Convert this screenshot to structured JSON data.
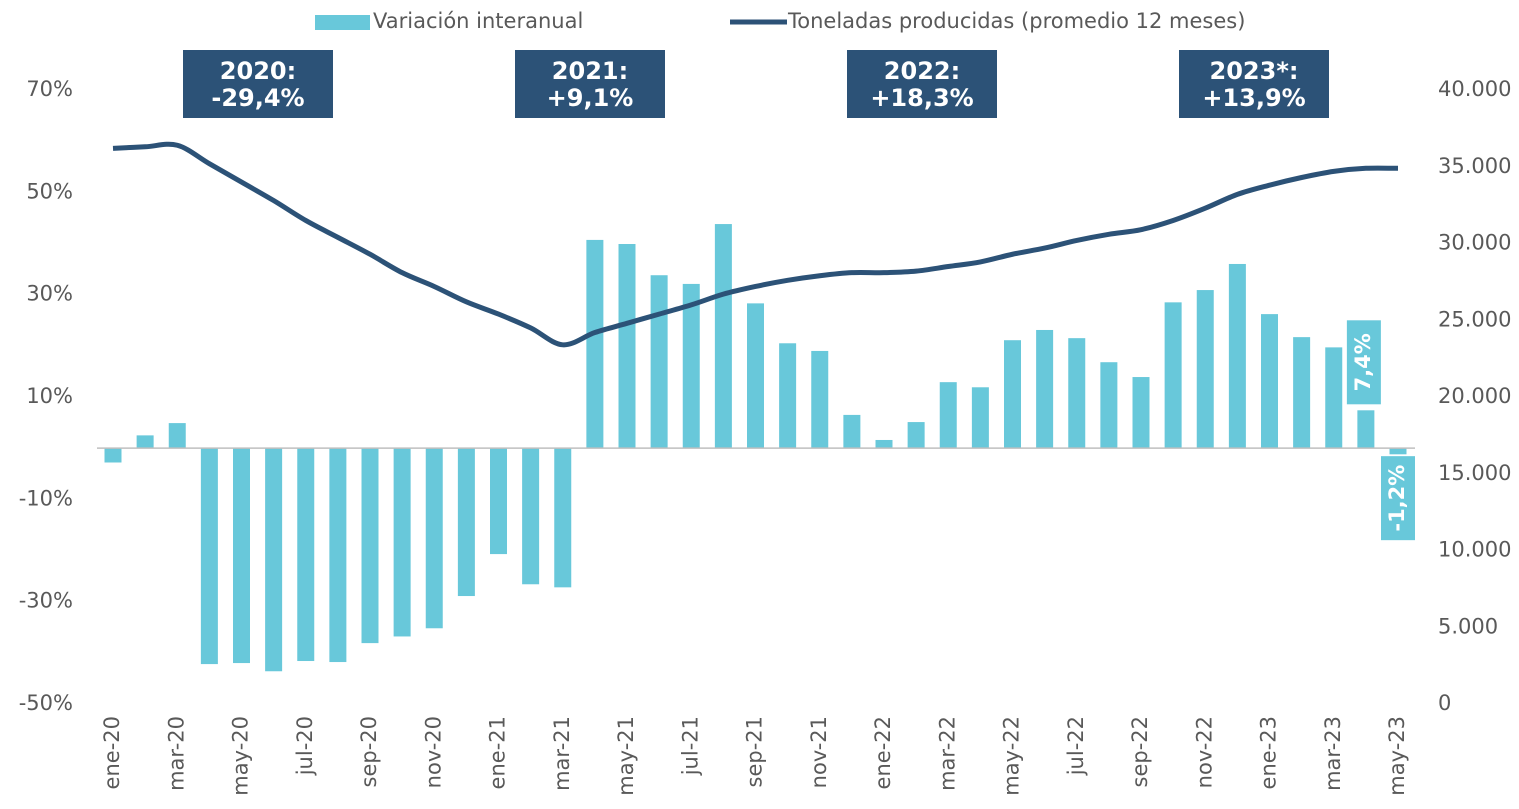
{
  "chart_data": {
    "type": "bar-line",
    "categories": [
      "ene-20",
      null,
      "mar-20",
      null,
      "may-20",
      null,
      "jul-20",
      null,
      "sep-20",
      null,
      "nov-20",
      null,
      "ene-21",
      null,
      "mar-21",
      null,
      "may-21",
      null,
      "jul-21",
      null,
      "sep-21",
      null,
      "nov-21",
      null,
      "ene-22",
      null,
      "mar-22",
      null,
      "may-22",
      null,
      "jul-22",
      null,
      "sep-22",
      null,
      "nov-22",
      null,
      "ene-23",
      null,
      "mar-23",
      null,
      "may-23"
    ],
    "series": [
      {
        "name": "Variación interanual",
        "color": "#68c8da",
        "type": "bar",
        "values": [
          -2.8,
          2.5,
          4.9,
          -42.2,
          -42.0,
          -43.6,
          -41.6,
          -41.8,
          -38.1,
          -36.8,
          -35.2,
          -28.9,
          -20.7,
          -26.6,
          -27.2,
          40.7,
          39.9,
          33.8,
          32.1,
          43.8,
          28.3,
          20.5,
          19.0,
          6.5,
          1.6,
          5.1,
          12.9,
          11.9,
          21.1,
          23.1,
          21.5,
          16.8,
          13.9,
          28.5,
          30.9,
          36.0,
          26.2,
          21.7,
          19.7,
          7.4,
          -1.2
        ],
        "value_labels": [
          null,
          null,
          null,
          null,
          null,
          null,
          null,
          null,
          null,
          null,
          null,
          null,
          null,
          null,
          null,
          null,
          null,
          null,
          null,
          null,
          null,
          null,
          null,
          null,
          null,
          null,
          null,
          null,
          null,
          null,
          null,
          null,
          null,
          null,
          null,
          null,
          null,
          null,
          null,
          "7,4%",
          "-1,2%"
        ]
      },
      {
        "name": "Toneladas producidas (promedio 12 meses)",
        "color": "#2c5277",
        "type": "line",
        "axis": "y2",
        "values": [
          36200,
          36300,
          36400,
          35200,
          34000,
          32800,
          31500,
          30400,
          29300,
          28100,
          27200,
          26200,
          25400,
          24500,
          23400,
          24200,
          24800,
          25400,
          26000,
          26700,
          27200,
          27600,
          27900,
          28100,
          28100,
          28200,
          28500,
          28800,
          29300,
          29700,
          30200,
          30600,
          30900,
          31500,
          32300,
          33200,
          33800,
          34300,
          34700,
          34900,
          34900
        ]
      }
    ],
    "ylim": [
      -50,
      70
    ],
    "yticks": [
      {
        "value": -50,
        "label": "-50%"
      },
      {
        "value": -30,
        "label": "-30%"
      },
      {
        "value": -10,
        "label": "-10%"
      },
      {
        "value": 10,
        "label": "10%"
      },
      {
        "value": 30,
        "label": "30%"
      },
      {
        "value": 50,
        "label": "50%"
      },
      {
        "value": 70,
        "label": "70%"
      }
    ],
    "y2lim": [
      0,
      40000
    ],
    "y2ticks": [
      0,
      {
        "value": 5000,
        "label": "5.000"
      },
      {
        "value": 10000,
        "label": "10.000"
      },
      {
        "value": 15000,
        "label": "15.000"
      },
      {
        "value": 20000,
        "label": "20.000"
      },
      {
        "value": 25000,
        "label": "25.000"
      },
      {
        "value": 30000,
        "label": "30.000"
      },
      {
        "value": 35000,
        "label": "35.000"
      },
      {
        "value": 40000,
        "label": "40.000"
      }
    ],
    "annotations": [
      {
        "year": "2020:",
        "value": "-29,4%"
      },
      {
        "year": "2021:",
        "value": "+9,1%"
      },
      {
        "year": "2022:",
        "value": "+18,3%"
      },
      {
        "year": "2023*:",
        "value": "+13,9%"
      }
    ],
    "legend": "top",
    "annotation_color": "#2c5277"
  }
}
